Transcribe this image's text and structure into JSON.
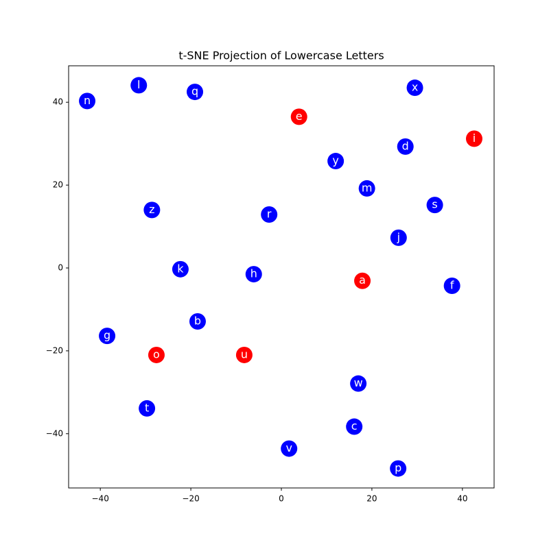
{
  "chart_data": {
    "type": "scatter",
    "title": "t-SNE Projection of Lowercase Letters",
    "labels": [
      "n",
      "l",
      "q",
      "e",
      "x",
      "i",
      "d",
      "y",
      "m",
      "s",
      "z",
      "r",
      "j",
      "k",
      "h",
      "a",
      "f",
      "b",
      "g",
      "o",
      "u",
      "w",
      "t",
      "c",
      "v",
      "p"
    ],
    "x": [
      -42.9,
      -31.5,
      -19.1,
      3.9,
      29.5,
      42.6,
      27.4,
      12.0,
      18.9,
      33.9,
      -28.6,
      -2.7,
      25.9,
      -22.3,
      -6.1,
      17.9,
      37.7,
      -18.5,
      -38.5,
      -27.6,
      -8.2,
      17.0,
      -29.7,
      16.1,
      1.7,
      25.8
    ],
    "values": [
      40.3,
      44.1,
      42.5,
      36.5,
      43.5,
      31.2,
      29.3,
      25.8,
      19.2,
      15.2,
      14.0,
      12.9,
      7.3,
      -0.3,
      -1.5,
      -3.1,
      -4.3,
      -12.9,
      -16.4,
      -21.0,
      -21.0,
      -27.9,
      -33.9,
      -38.3,
      -43.6,
      -48.4
    ],
    "colors": [
      "#0000ff",
      "#0000ff",
      "#0000ff",
      "#ff0000",
      "#0000ff",
      "#ff0000",
      "#0000ff",
      "#0000ff",
      "#0000ff",
      "#0000ff",
      "#0000ff",
      "#0000ff",
      "#0000ff",
      "#0000ff",
      "#0000ff",
      "#ff0000",
      "#0000ff",
      "#0000ff",
      "#0000ff",
      "#ff0000",
      "#ff0000",
      "#0000ff",
      "#0000ff",
      "#0000ff",
      "#0000ff",
      "#0000ff"
    ],
    "xlim": [
      -47.0,
      47.0
    ],
    "ylim": [
      -53.1,
      48.8
    ],
    "xticks": [
      {
        "value": -40,
        "label": "−40"
      },
      {
        "value": -20,
        "label": "−20"
      },
      0,
      20,
      40
    ],
    "yticks": [
      {
        "value": -40,
        "label": "−40"
      },
      {
        "value": -20,
        "label": "−20"
      },
      0,
      20,
      40
    ]
  }
}
